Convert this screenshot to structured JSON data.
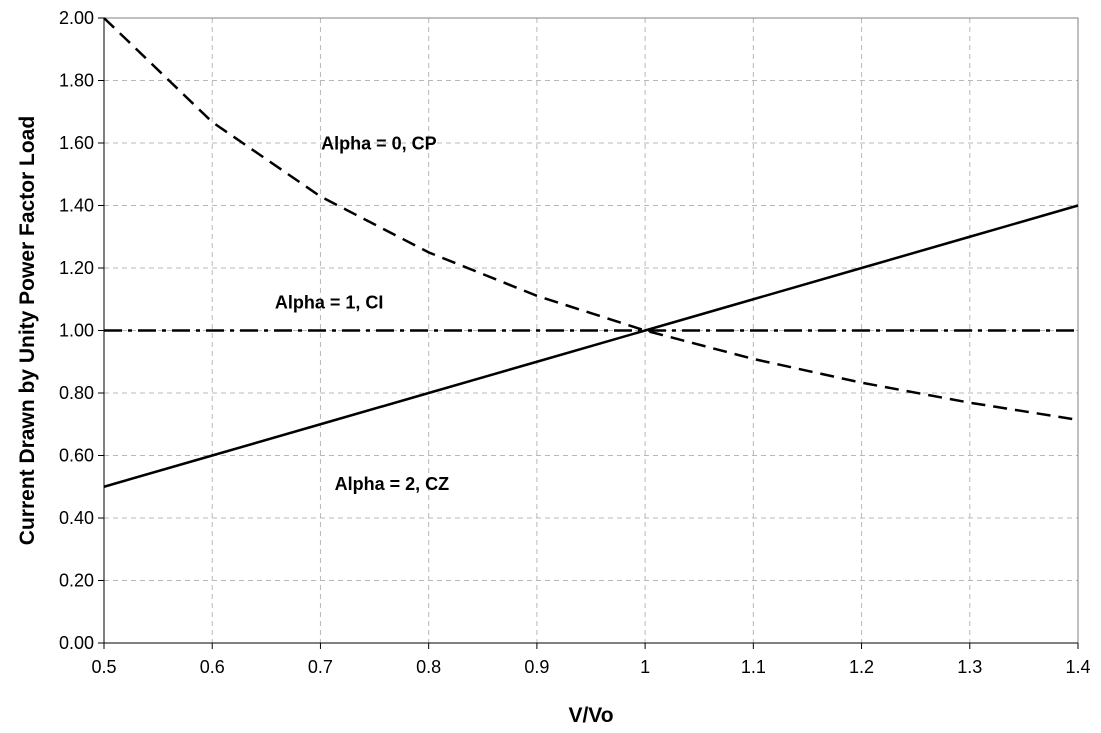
{
  "chart_data": {
    "type": "line",
    "xlabel": "V/Vo",
    "ylabel": "Current Drawn by Unity Power Factor Load",
    "xlim": [
      0.5,
      1.4
    ],
    "ylim": [
      0.0,
      2.0
    ],
    "xticks": [
      "0.5",
      "0.6",
      "0.7",
      "0.8",
      "0.9",
      "1",
      "1.1",
      "1.2",
      "1.3",
      "1.4"
    ],
    "yticks": [
      "0.00",
      "0.20",
      "0.40",
      "0.60",
      "0.80",
      "1.00",
      "1.20",
      "1.40",
      "1.60",
      "1.80",
      "2.00"
    ],
    "grid": true,
    "legend": "none",
    "x": [
      0.5,
      0.6,
      0.7,
      0.8,
      0.9,
      1.0,
      1.1,
      1.2,
      1.3,
      1.4
    ],
    "series": [
      {
        "values": [
          2.0,
          1.667,
          1.429,
          1.25,
          1.111,
          1.0,
          0.909,
          0.833,
          0.769,
          0.714
        ],
        "line_style": "dashed",
        "color": "#000000"
      },
      {
        "values": [
          1.0,
          1.0,
          1.0,
          1.0,
          1.0,
          1.0,
          1.0,
          1.0,
          1.0,
          1.0
        ],
        "line_style": "dash-dot",
        "color": "#000000"
      },
      {
        "values": [
          0.5,
          0.6,
          0.7,
          0.8,
          0.9,
          1.0,
          1.1,
          1.2,
          1.3,
          1.4
        ],
        "line_style": "solid",
        "color": "#000000"
      }
    ],
    "annotations": [
      {
        "text": "Alpha = 0, CP",
        "x": 0.754,
        "y": 1.58
      },
      {
        "text": "Alpha = 1, CI",
        "x": 0.708,
        "y": 1.07
      },
      {
        "text": "Alpha = 2, CZ",
        "x": 0.766,
        "y": 0.49
      }
    ]
  }
}
